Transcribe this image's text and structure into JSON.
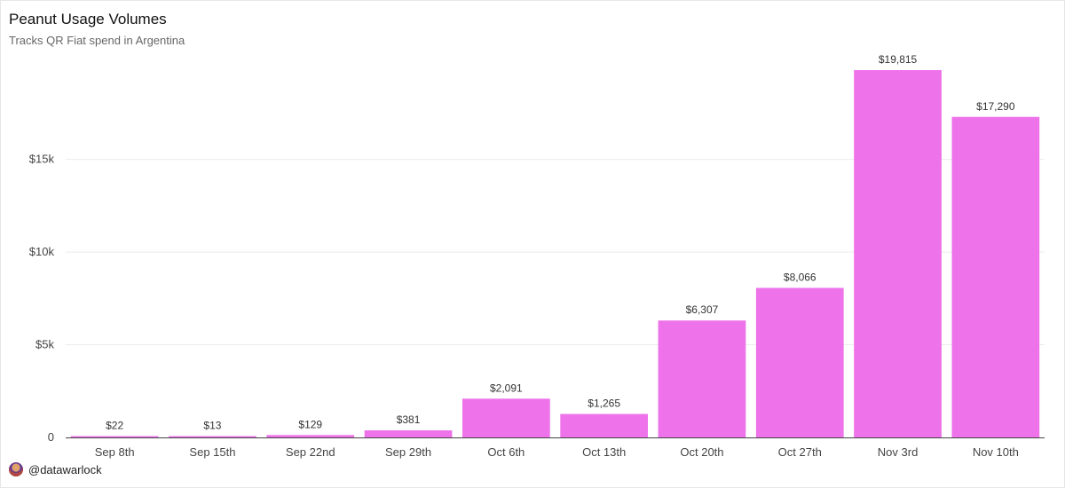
{
  "header": {
    "title": "Peanut Usage Volumes",
    "subtitle": "Tracks QR Fiat spend in Argentina"
  },
  "footer": {
    "handle": "@datawarlock",
    "avatar_icon": "profile-avatar-icon"
  },
  "colors": {
    "bar": "#ee72e9",
    "grid": "#ececec",
    "axis": "#444444"
  },
  "chart_data": {
    "type": "bar",
    "title": "Peanut Usage Volumes",
    "subtitle": "Tracks QR Fiat spend in Argentina",
    "categories": [
      "Sep 8th",
      "Sep 15th",
      "Sep 22nd",
      "Sep 29th",
      "Oct 6th",
      "Oct 13th",
      "Oct 20th",
      "Oct 27th",
      "Nov 3rd",
      "Nov 10th"
    ],
    "values": [
      22,
      13,
      129,
      381,
      2091,
      1265,
      6307,
      8066,
      19815,
      17290
    ],
    "data_labels": [
      "$22",
      "$13",
      "$129",
      "$381",
      "$2,091",
      "$1,265",
      "$6,307",
      "$8,066",
      "$19,815",
      "$17,290"
    ],
    "ylim": [
      0,
      19815
    ],
    "yticks": [
      0,
      5000,
      10000,
      15000
    ],
    "ytick_labels": [
      "0",
      "$5k",
      "$10k",
      "$15k"
    ],
    "xlabel": "",
    "ylabel": "",
    "grid": true,
    "legend": "none"
  }
}
